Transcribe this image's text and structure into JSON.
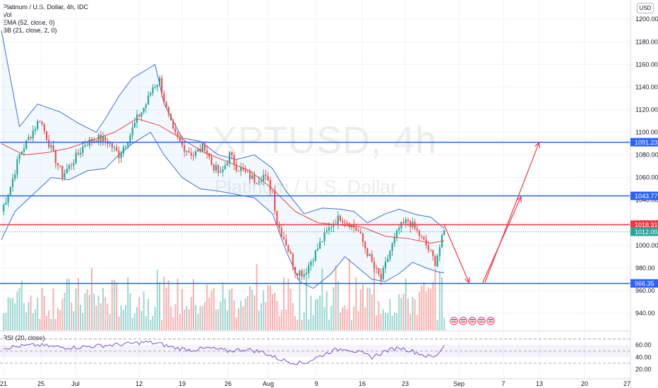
{
  "header": {
    "symbol_line": "Platinum / U.S. Dollar, 4h, IDC",
    "vol_label": "Vol",
    "ema_label": "EMA (52, close, 0)",
    "bb_label": "BB (21, close, 2, 0)",
    "currency": "USD"
  },
  "watermark": {
    "ticker": "XPTUSD, 4h",
    "name": "Platinum / U.S. Dollar"
  },
  "rsi_panel": {
    "label": "RSI (20, close)"
  },
  "colors": {
    "up": "#26a69a",
    "down": "#ef5350",
    "blue_line": "#2962ff",
    "red_line": "#f23645",
    "ema": "#e0463a",
    "bb": "#3f6fd8",
    "rsi": "#7e57c2"
  },
  "chart_data": {
    "type": "candlestick",
    "title": "Platinum / U.S. Dollar, 4h, IDC",
    "y_axis": {
      "ticks": [
        1200,
        1180,
        1160,
        1140,
        1120,
        1100,
        1080,
        1060,
        1040,
        1020,
        1000,
        980,
        960,
        940
      ],
      "range": [
        930,
        1212
      ]
    },
    "x_axis": {
      "tick_labels": [
        "21",
        "25",
        "Jul",
        "12",
        "19",
        "26",
        "Aug",
        "9",
        "16",
        "23",
        "Sep",
        "7",
        "13",
        "20",
        "27"
      ]
    },
    "price_path": [
      [
        0,
        1030
      ],
      [
        4,
        1052
      ],
      [
        8,
        1080
      ],
      [
        13,
        1098
      ],
      [
        17,
        1112
      ],
      [
        22,
        1085
      ],
      [
        27,
        1062
      ],
      [
        32,
        1075
      ],
      [
        37,
        1090
      ],
      [
        42,
        1095
      ],
      [
        47,
        1092
      ],
      [
        52,
        1080
      ],
      [
        57,
        1098
      ],
      [
        60,
        1112
      ],
      [
        64,
        1125
      ],
      [
        67,
        1140
      ],
      [
        70,
        1146
      ],
      [
        73,
        1120
      ],
      [
        76,
        1100
      ],
      [
        80,
        1088
      ],
      [
        85,
        1080
      ],
      [
        90,
        1088
      ],
      [
        93,
        1072
      ],
      [
        97,
        1062
      ],
      [
        101,
        1080
      ],
      [
        104,
        1070
      ],
      [
        108,
        1064
      ],
      [
        112,
        1058
      ],
      [
        116,
        1062
      ],
      [
        120,
        1048
      ],
      [
        122,
        1020
      ],
      [
        126,
        1002
      ],
      [
        130,
        978
      ],
      [
        134,
        975
      ],
      [
        138,
        990
      ],
      [
        142,
        1005
      ],
      [
        146,
        1018
      ],
      [
        150,
        1025
      ],
      [
        154,
        1020
      ],
      [
        158,
        1012
      ],
      [
        161,
        998
      ],
      [
        165,
        980
      ],
      [
        168,
        970
      ],
      [
        172,
        995
      ],
      [
        176,
        1015
      ],
      [
        180,
        1022
      ],
      [
        184,
        1012
      ],
      [
        188,
        1000
      ],
      [
        192,
        985
      ],
      [
        196,
        1012
      ]
    ],
    "ema_52": [
      [
        0,
        1090
      ],
      [
        10,
        1080
      ],
      [
        20,
        1082
      ],
      [
        30,
        1086
      ],
      [
        40,
        1093
      ],
      [
        50,
        1100
      ],
      [
        60,
        1112
      ],
      [
        70,
        1106
      ],
      [
        80,
        1094
      ],
      [
        90,
        1082
      ],
      [
        100,
        1074
      ],
      [
        110,
        1066
      ],
      [
        120,
        1050
      ],
      [
        130,
        1030
      ],
      [
        140,
        1020
      ],
      [
        150,
        1018
      ],
      [
        160,
        1016
      ],
      [
        170,
        1008
      ],
      [
        180,
        1006
      ],
      [
        190,
        1002
      ],
      [
        196,
        1004
      ]
    ],
    "bollinger_upper": [
      [
        0,
        1190
      ],
      [
        8,
        1105
      ],
      [
        16,
        1125
      ],
      [
        26,
        1118
      ],
      [
        34,
        1108
      ],
      [
        42,
        1100
      ],
      [
        46,
        1112
      ],
      [
        52,
        1132
      ],
      [
        58,
        1148
      ],
      [
        64,
        1155
      ],
      [
        68,
        1160
      ],
      [
        72,
        1125
      ],
      [
        80,
        1095
      ],
      [
        88,
        1092
      ],
      [
        96,
        1080
      ],
      [
        104,
        1076
      ],
      [
        112,
        1080
      ],
      [
        120,
        1068
      ],
      [
        126,
        1048
      ],
      [
        134,
        1028
      ],
      [
        142,
        1033
      ],
      [
        150,
        1032
      ],
      [
        156,
        1030
      ],
      [
        162,
        1020
      ],
      [
        170,
        1028
      ],
      [
        176,
        1032
      ],
      [
        184,
        1027
      ],
      [
        190,
        1025
      ],
      [
        196,
        1015
      ]
    ],
    "bollinger_lower": [
      [
        0,
        1005
      ],
      [
        6,
        1030
      ],
      [
        14,
        1045
      ],
      [
        22,
        1060
      ],
      [
        30,
        1058
      ],
      [
        38,
        1066
      ],
      [
        46,
        1068
      ],
      [
        52,
        1080
      ],
      [
        58,
        1090
      ],
      [
        66,
        1100
      ],
      [
        72,
        1080
      ],
      [
        80,
        1060
      ],
      [
        88,
        1050
      ],
      [
        96,
        1048
      ],
      [
        104,
        1045
      ],
      [
        112,
        1042
      ],
      [
        120,
        1028
      ],
      [
        126,
        995
      ],
      [
        132,
        968
      ],
      [
        138,
        962
      ],
      [
        146,
        975
      ],
      [
        152,
        990
      ],
      [
        158,
        980
      ],
      [
        164,
        970
      ],
      [
        170,
        968
      ],
      [
        176,
        975
      ],
      [
        182,
        985
      ],
      [
        188,
        980
      ],
      [
        194,
        976
      ],
      [
        196,
        976
      ]
    ],
    "horizontal_levels": [
      {
        "price": 1091.23,
        "label": "1091.23",
        "color": "#2962ff"
      },
      {
        "price": 1043.77,
        "label": "1043.77",
        "color": "#2962ff"
      },
      {
        "price": 1018.31,
        "label": "1018.31",
        "color": "#f23645"
      },
      {
        "price": 966.35,
        "label": "966.35",
        "color": "#2962ff"
      }
    ],
    "last_price": {
      "price": 1012.0,
      "label": "1012.00",
      "color": "#26a69a"
    },
    "projection": [
      [
        196,
        1018
      ],
      [
        207,
        967
      ],
      [
        213,
        967
      ],
      [
        230,
        1043
      ],
      [
        214,
        967
      ],
      [
        238,
        1091
      ]
    ],
    "rsi_axis_ticks": [
      60,
      40,
      20
    ],
    "rsi_values": [
      [
        0,
        55
      ],
      [
        8,
        58
      ],
      [
        16,
        60
      ],
      [
        24,
        57
      ],
      [
        32,
        56
      ],
      [
        40,
        58
      ],
      [
        48,
        60
      ],
      [
        56,
        62
      ],
      [
        64,
        65
      ],
      [
        70,
        62
      ],
      [
        76,
        56
      ],
      [
        84,
        52
      ],
      [
        92,
        55
      ],
      [
        100,
        50
      ],
      [
        108,
        53
      ],
      [
        116,
        48
      ],
      [
        122,
        38
      ],
      [
        128,
        32
      ],
      [
        134,
        30
      ],
      [
        140,
        40
      ],
      [
        146,
        50
      ],
      [
        152,
        55
      ],
      [
        158,
        48
      ],
      [
        164,
        40
      ],
      [
        170,
        50
      ],
      [
        176,
        56
      ],
      [
        182,
        50
      ],
      [
        188,
        42
      ],
      [
        192,
        40
      ],
      [
        196,
        60
      ]
    ],
    "volume_bars": 196,
    "future_event_markers": 5
  }
}
